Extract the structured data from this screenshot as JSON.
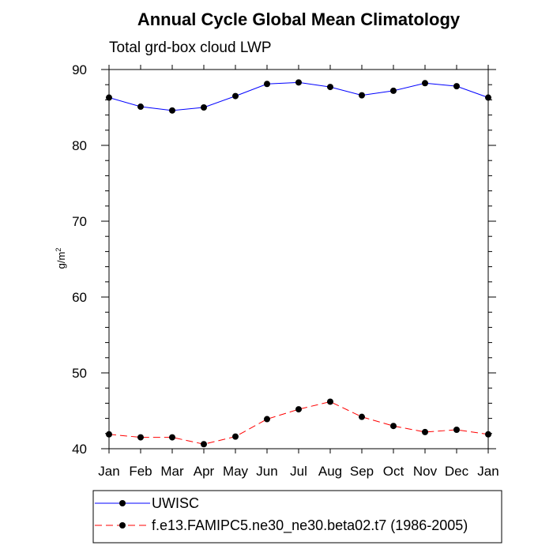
{
  "chart_data": {
    "type": "line",
    "title": "Annual Cycle Global Mean Climatology",
    "subtitle": "Total grd-box cloud LWP",
    "ylabel_base": "g/m",
    "ylabel_sup": "2",
    "xlabel": "",
    "categories": [
      "Jan",
      "Feb",
      "Mar",
      "Apr",
      "May",
      "Jun",
      "Jul",
      "Aug",
      "Sep",
      "Oct",
      "Nov",
      "Dec",
      "Jan"
    ],
    "ylim": [
      40,
      90
    ],
    "yticks": [
      40,
      50,
      60,
      70,
      80,
      90
    ],
    "series": [
      {
        "name": "UWISC",
        "color": "#0000ff",
        "dash": "solid",
        "values": [
          86.3,
          85.1,
          84.6,
          85.0,
          86.5,
          88.1,
          88.3,
          87.7,
          86.6,
          87.2,
          88.2,
          87.8,
          86.3
        ]
      },
      {
        "name": "f.e13.FAMIPC5.ne30_ne30.beta02.t7 (1986-2005)",
        "color": "#ff0000",
        "dash": "dashed",
        "values": [
          41.9,
          41.5,
          41.5,
          40.6,
          41.6,
          43.9,
          45.2,
          46.2,
          44.2,
          43.0,
          42.2,
          42.5,
          41.9
        ]
      }
    ],
    "legend_position": "bottom"
  }
}
